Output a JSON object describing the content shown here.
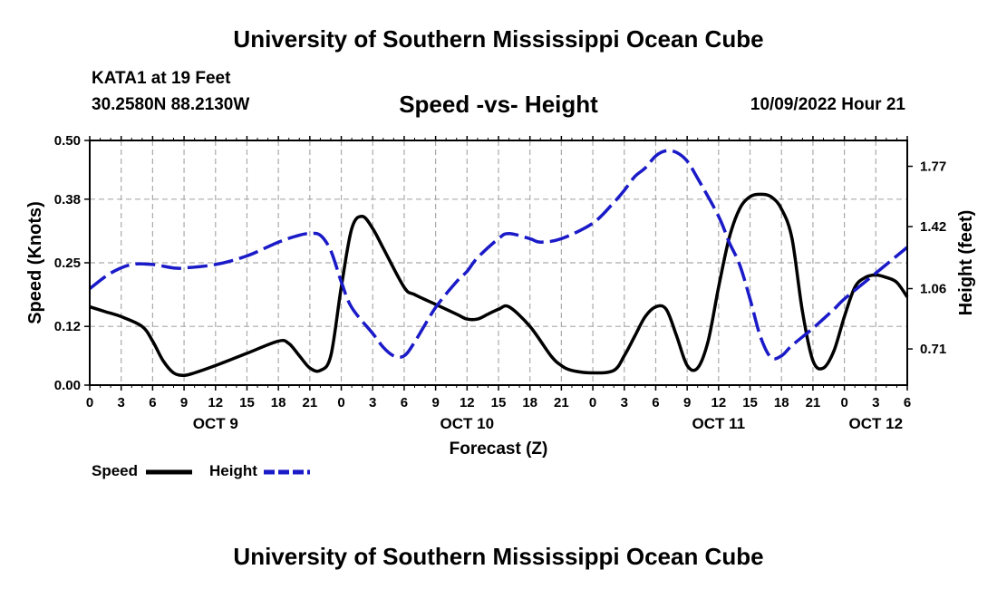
{
  "header": {
    "title": "University of Southern Mississippi Ocean Cube",
    "station": "KATA1 at 19 Feet",
    "coords": "30.2580N  88.2130W",
    "subtitle": "Speed -vs- Height",
    "datetime": "10/09/2022 Hour 21"
  },
  "footer": {
    "title": "University of Southern Mississippi Ocean Cube"
  },
  "chart_data": {
    "type": "line",
    "title": "Speed -vs- Height",
    "xlabel": "Forecast (Z)",
    "ylabel": "Speed (Knots)",
    "y2label": "Height (feet)",
    "xlim": [
      0,
      78
    ],
    "ylim": [
      0,
      0.5
    ],
    "y2lim": [
      0.5,
      1.92
    ],
    "x_ticks": [
      0,
      3,
      6,
      9,
      12,
      15,
      18,
      21,
      24,
      27,
      30,
      33,
      36,
      39,
      42,
      45,
      48,
      51,
      54,
      57,
      60,
      63,
      66,
      69,
      72,
      75,
      78
    ],
    "x_tick_labels": [
      "0",
      "3",
      "6",
      "9",
      "12",
      "15",
      "18",
      "21",
      "0",
      "3",
      "6",
      "9",
      "12",
      "15",
      "18",
      "21",
      "0",
      "3",
      "6",
      "9",
      "12",
      "15",
      "18",
      "21",
      "0",
      "3",
      "6"
    ],
    "day_labels": [
      {
        "x": 12,
        "label": "OCT 9"
      },
      {
        "x": 36,
        "label": "OCT 10"
      },
      {
        "x": 60,
        "label": "OCT 11"
      },
      {
        "x": 75,
        "label": "OCT 12"
      }
    ],
    "y_ticks": [
      0.0,
      0.12,
      0.25,
      0.38,
      0.5
    ],
    "y_tick_labels": [
      "0.00",
      "0.12",
      "0.25",
      "0.38",
      "0.50"
    ],
    "y2_ticks": [
      0.71,
      1.06,
      1.42,
      1.77
    ],
    "y2_tick_labels": [
      "0.71",
      "1.06",
      "1.42",
      "1.77"
    ],
    "grid": true,
    "legend_position": "bottom-left",
    "series": [
      {
        "name": "Speed",
        "axis": "left",
        "color": "#000000",
        "dash": "solid",
        "x": [
          0,
          1.5,
          3,
          5,
          6,
          7,
          8,
          9,
          10,
          12,
          15,
          18,
          19,
          20,
          21,
          22,
          23,
          24,
          25,
          26,
          27,
          28,
          30,
          31,
          33,
          35,
          36,
          37,
          38,
          39,
          40,
          42,
          44,
          45,
          46,
          48,
          50,
          51,
          52,
          53,
          54,
          55,
          56,
          57,
          58,
          59,
          60,
          61,
          62,
          63,
          64,
          65,
          66,
          67,
          68,
          69,
          70,
          71,
          72,
          73,
          74,
          75,
          76,
          77,
          78
        ],
        "values": [
          0.16,
          0.15,
          0.14,
          0.12,
          0.09,
          0.05,
          0.025,
          0.02,
          0.025,
          0.04,
          0.065,
          0.09,
          0.085,
          0.06,
          0.035,
          0.03,
          0.06,
          0.2,
          0.32,
          0.345,
          0.32,
          0.28,
          0.2,
          0.185,
          0.165,
          0.145,
          0.135,
          0.135,
          0.145,
          0.155,
          0.16,
          0.12,
          0.06,
          0.04,
          0.03,
          0.025,
          0.03,
          0.06,
          0.1,
          0.14,
          0.16,
          0.155,
          0.1,
          0.04,
          0.035,
          0.09,
          0.2,
          0.3,
          0.36,
          0.385,
          0.39,
          0.385,
          0.36,
          0.3,
          0.15,
          0.05,
          0.035,
          0.07,
          0.14,
          0.2,
          0.22,
          0.225,
          0.22,
          0.21,
          0.18
        ]
      },
      {
        "name": "Height",
        "axis": "right",
        "color": "#1a1ac8",
        "dash": "dashed",
        "x": [
          0,
          2,
          4,
          6,
          8,
          9,
          12,
          15,
          18,
          20,
          21,
          22,
          23,
          24,
          25,
          27,
          28,
          29,
          30,
          31,
          33,
          35,
          36,
          37,
          39,
          40,
          42,
          43,
          45,
          48,
          50,
          51,
          52,
          53,
          54,
          55,
          56,
          57,
          58,
          60,
          61,
          62,
          63,
          64,
          65,
          66,
          67,
          69,
          71,
          72,
          75,
          78
        ],
        "values": [
          1.06,
          1.15,
          1.2,
          1.2,
          1.18,
          1.18,
          1.2,
          1.25,
          1.33,
          1.37,
          1.38,
          1.37,
          1.28,
          1.1,
          0.95,
          0.8,
          0.72,
          0.67,
          0.67,
          0.75,
          0.95,
          1.1,
          1.16,
          1.24,
          1.35,
          1.38,
          1.35,
          1.33,
          1.35,
          1.44,
          1.56,
          1.63,
          1.71,
          1.76,
          1.83,
          1.86,
          1.85,
          1.8,
          1.7,
          1.48,
          1.33,
          1.2,
          1.0,
          0.78,
          0.66,
          0.67,
          0.73,
          0.83,
          0.94,
          1.0,
          1.15,
          1.3
        ]
      }
    ]
  }
}
